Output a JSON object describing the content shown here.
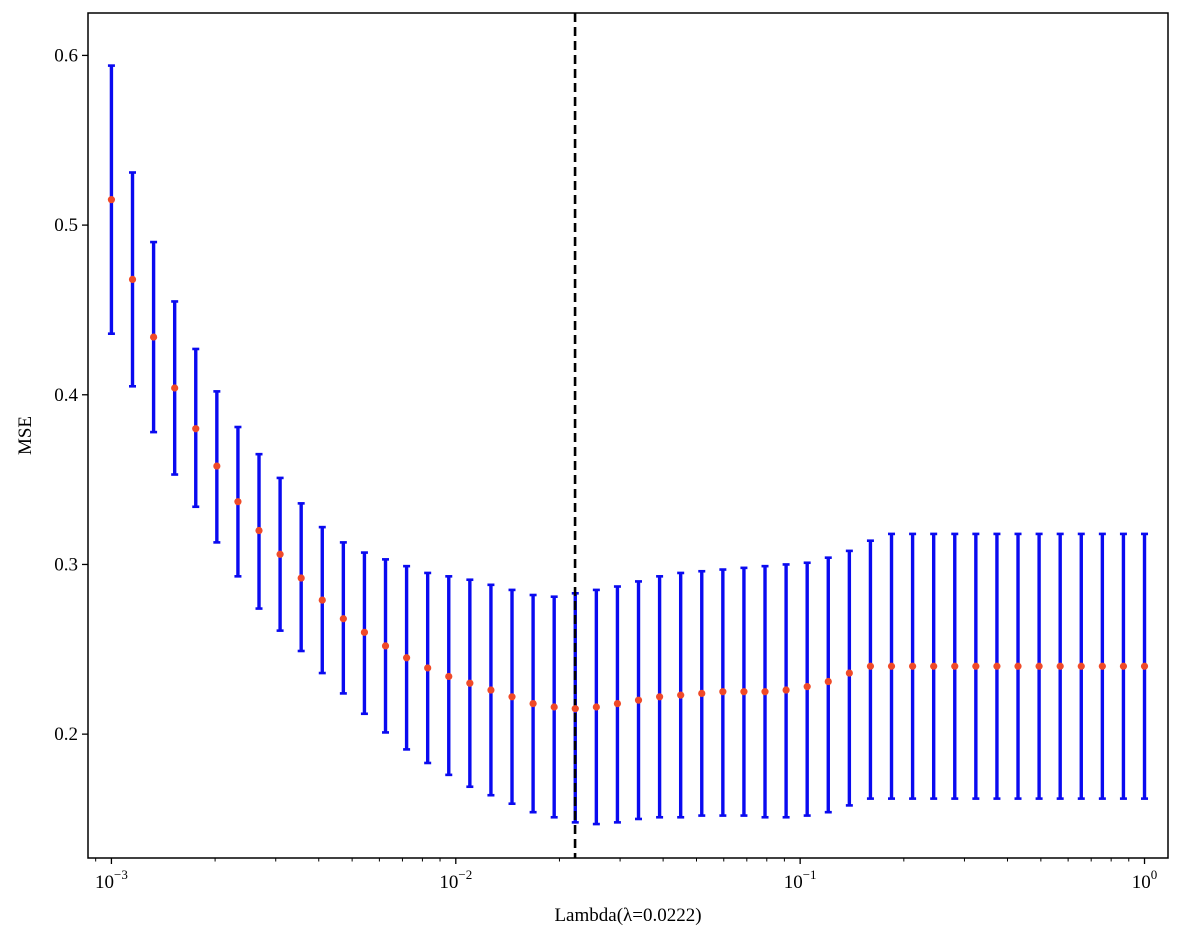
{
  "chart_data": {
    "type": "scatter",
    "title": "",
    "xlabel": "Lambda(λ=0.0222)",
    "ylabel": "MSE",
    "x_scale": "log",
    "xlim": [
      0.000855,
      1.17
    ],
    "ylim": [
      0.127,
      0.625
    ],
    "x_ticks": [
      {
        "value": 0.001,
        "base": "10",
        "exp": "−3"
      },
      {
        "value": 0.01,
        "base": "10",
        "exp": "−2"
      },
      {
        "value": 0.1,
        "base": "10",
        "exp": "−1"
      },
      {
        "value": 1,
        "base": "10",
        "exp": "0"
      }
    ],
    "y_ticks": [
      "0.2",
      "0.3",
      "0.4",
      "0.5",
      "0.6"
    ],
    "grid": false,
    "selected_lambda": 0.0222,
    "colors": {
      "errorbar": "#0a0af0",
      "point": "#f04a28",
      "vline": "#000000"
    },
    "points": {
      "mean": [
        0.515,
        0.468,
        0.434,
        0.404,
        0.38,
        0.358,
        0.337,
        0.32,
        0.306,
        0.292,
        0.279,
        0.268,
        0.26,
        0.252,
        0.245,
        0.239,
        0.234,
        0.23,
        0.226,
        0.222,
        0.218,
        0.216,
        0.215,
        0.216,
        0.218,
        0.22,
        0.222,
        0.223,
        0.224,
        0.225,
        0.225,
        0.225,
        0.226,
        0.228,
        0.231,
        0.236,
        0.24,
        0.24,
        0.24,
        0.24,
        0.24,
        0.24,
        0.24,
        0.24,
        0.24,
        0.24,
        0.24,
        0.24,
        0.24,
        0.24
      ],
      "upper": [
        0.594,
        0.531,
        0.49,
        0.455,
        0.427,
        0.402,
        0.381,
        0.365,
        0.351,
        0.336,
        0.322,
        0.313,
        0.307,
        0.303,
        0.299,
        0.295,
        0.293,
        0.291,
        0.288,
        0.285,
        0.282,
        0.281,
        0.283,
        0.285,
        0.287,
        0.29,
        0.293,
        0.295,
        0.296,
        0.297,
        0.298,
        0.299,
        0.3,
        0.301,
        0.304,
        0.308,
        0.314,
        0.318,
        0.318,
        0.318,
        0.318,
        0.318,
        0.318,
        0.318,
        0.318,
        0.318,
        0.318,
        0.318,
        0.318,
        0.318
      ],
      "lower": [
        0.436,
        0.405,
        0.378,
        0.353,
        0.334,
        0.313,
        0.293,
        0.274,
        0.261,
        0.249,
        0.236,
        0.224,
        0.212,
        0.201,
        0.191,
        0.183,
        0.176,
        0.169,
        0.164,
        0.159,
        0.154,
        0.151,
        0.148,
        0.147,
        0.148,
        0.15,
        0.151,
        0.151,
        0.152,
        0.152,
        0.152,
        0.151,
        0.151,
        0.152,
        0.154,
        0.158,
        0.162,
        0.162,
        0.162,
        0.162,
        0.162,
        0.162,
        0.162,
        0.162,
        0.162,
        0.162,
        0.162,
        0.162,
        0.162,
        0.162
      ]
    }
  }
}
